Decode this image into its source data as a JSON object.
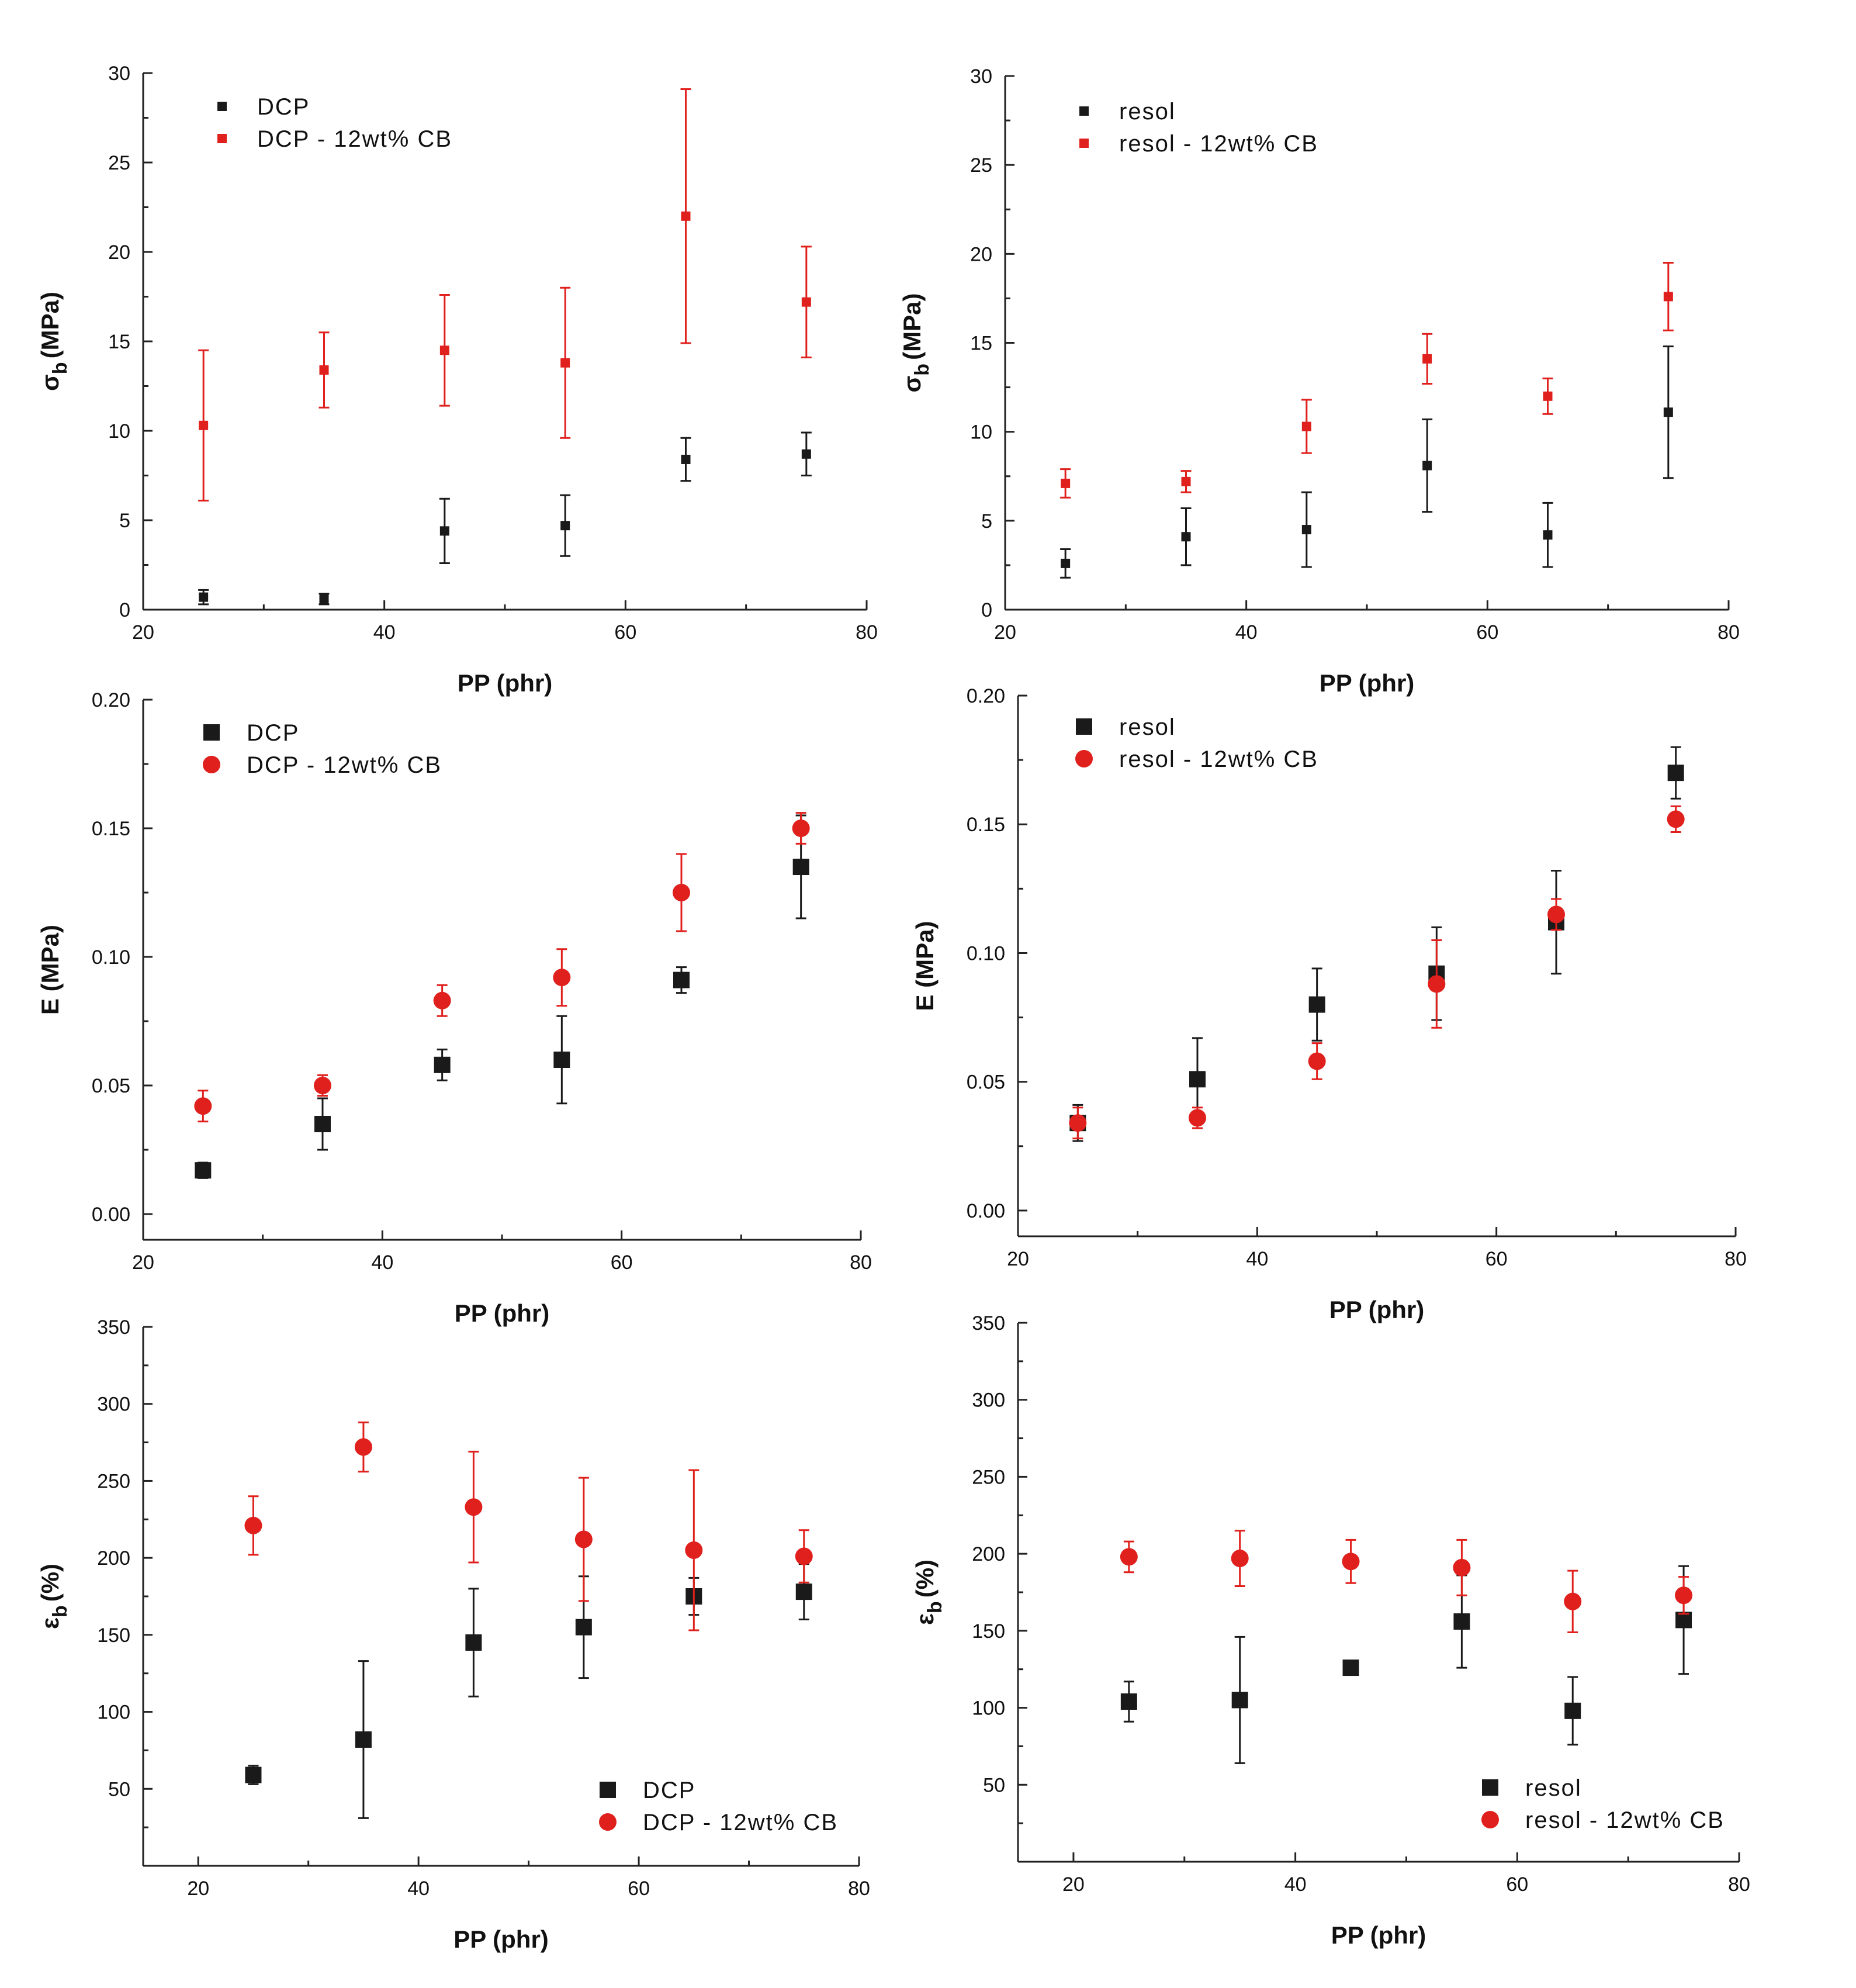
{
  "chart_data": [
    {
      "id": "p1",
      "type": "scatter",
      "panel": "top-left",
      "title": "",
      "xlabel": "PP (phr)",
      "ylabel": "σb (MPa)",
      "ylabel_main": "σ",
      "ylabel_sub": "b",
      "ylabel_unit": "(MPa)",
      "xlim": [
        20,
        80
      ],
      "ylim": [
        0,
        30
      ],
      "xticks": [
        "20",
        "40",
        "60",
        "80"
      ],
      "yticks": [
        "0",
        "5",
        "10",
        "15",
        "20",
        "25",
        "30"
      ],
      "marker_size": "small",
      "legend_position": "top-left",
      "series": [
        {
          "name": "DCP",
          "color": "#1a1a1a",
          "marker": "square",
          "x": [
            25,
            35,
            45,
            55,
            65,
            75
          ],
          "y": [
            0.7,
            0.6,
            4.4,
            4.7,
            8.4,
            8.7
          ],
          "err": [
            0.4,
            0.3,
            1.8,
            1.7,
            1.2,
            1.2
          ]
        },
        {
          "name": "DCP - 12wt% CB",
          "color": "#e0201c",
          "marker": "square",
          "x": [
            25,
            35,
            45,
            55,
            65,
            75
          ],
          "y": [
            10.3,
            13.4,
            14.5,
            13.8,
            22,
            17.2
          ],
          "err": [
            4.2,
            2.1,
            3.1,
            4.2,
            7.1,
            3.1
          ]
        }
      ]
    },
    {
      "id": "p2",
      "type": "scatter",
      "panel": "top-right",
      "title": "",
      "xlabel": "PP (phr)",
      "ylabel": "σb (MPa)",
      "ylabel_main": "σ",
      "ylabel_sub": "b",
      "ylabel_unit": "(MPa)",
      "xlim": [
        20,
        80
      ],
      "ylim": [
        0,
        30
      ],
      "xticks": [
        "20",
        "40",
        "60",
        "80"
      ],
      "yticks": [
        "0",
        "5",
        "10",
        "15",
        "20",
        "25",
        "30"
      ],
      "marker_size": "small",
      "legend_position": "top-left",
      "series": [
        {
          "name": "resol",
          "color": "#1a1a1a",
          "marker": "square",
          "x": [
            25,
            35,
            45,
            55,
            65,
            75
          ],
          "y": [
            2.6,
            4.1,
            4.5,
            8.1,
            4.2,
            11.1
          ],
          "err": [
            0.8,
            1.6,
            2.1,
            2.6,
            1.8,
            3.7
          ]
        },
        {
          "name": "resol - 12wt% CB",
          "color": "#e0201c",
          "marker": "square",
          "x": [
            25,
            35,
            45,
            55,
            65,
            75
          ],
          "y": [
            7.1,
            7.2,
            10.3,
            14.1,
            12.0,
            17.6
          ],
          "err": [
            0.8,
            0.6,
            1.5,
            1.4,
            1.0,
            1.9
          ]
        }
      ]
    },
    {
      "id": "p3",
      "type": "scatter",
      "panel": "middle-left",
      "title": "",
      "xlabel": "PP (phr)",
      "ylabel": "E (MPa)",
      "ylabel_main": "E (MPa)",
      "ylabel_sub": "",
      "ylabel_unit": "",
      "xlim": [
        20,
        80
      ],
      "ylim": [
        -0.01,
        0.2
      ],
      "xticks": [
        "20",
        "40",
        "60",
        "80"
      ],
      "yticks": [
        "0.00",
        "0.05",
        "0.10",
        "0.15",
        "0.20"
      ],
      "marker_size": "large",
      "legend_position": "top-left",
      "series": [
        {
          "name": "DCP",
          "color": "#1a1a1a",
          "marker": "square",
          "x": [
            25,
            35,
            45,
            55,
            65,
            75
          ],
          "y": [
            0.017,
            0.035,
            0.058,
            0.06,
            0.091,
            0.135
          ],
          "err": [
            0.003,
            0.01,
            0.006,
            0.017,
            0.005,
            0.02
          ]
        },
        {
          "name": "DCP - 12wt% CB",
          "color": "#e0201c",
          "marker": "circle",
          "x": [
            25,
            35,
            45,
            55,
            65,
            75
          ],
          "y": [
            0.042,
            0.05,
            0.083,
            0.092,
            0.125,
            0.15
          ],
          "err": [
            0.006,
            0.004,
            0.006,
            0.011,
            0.015,
            0.006
          ]
        }
      ]
    },
    {
      "id": "p4",
      "type": "scatter",
      "panel": "middle-right",
      "title": "",
      "xlabel": "PP (phr)",
      "ylabel": "E (MPa)",
      "ylabel_main": "E (MPa)",
      "ylabel_sub": "",
      "ylabel_unit": "",
      "xlim": [
        20,
        80
      ],
      "ylim": [
        -0.01,
        0.2
      ],
      "xticks": [
        "20",
        "40",
        "60",
        "80"
      ],
      "yticks": [
        "0.00",
        "0.05",
        "0.10",
        "0.15",
        "0.20"
      ],
      "marker_size": "large",
      "legend_position": "top-left",
      "series": [
        {
          "name": "resol",
          "color": "#1a1a1a",
          "marker": "square",
          "x": [
            25,
            35,
            45,
            55,
            65,
            75
          ],
          "y": [
            0.034,
            0.051,
            0.08,
            0.092,
            0.112,
            0.17
          ],
          "err": [
            0.007,
            0.016,
            0.014,
            0.018,
            0.02,
            0.01
          ]
        },
        {
          "name": "resol - 12wt% CB",
          "color": "#e0201c",
          "marker": "circle",
          "x": [
            25,
            35,
            45,
            55,
            65,
            75
          ],
          "y": [
            0.034,
            0.036,
            0.058,
            0.088,
            0.115,
            0.152
          ],
          "err": [
            0.006,
            0.004,
            0.007,
            0.017,
            0.006,
            0.005
          ]
        }
      ]
    },
    {
      "id": "p5",
      "type": "scatter",
      "panel": "bottom-left",
      "title": "",
      "xlabel": "PP (phr)",
      "ylabel": "εb (%)",
      "ylabel_main": "ε",
      "ylabel_sub": "b",
      "ylabel_unit": "(%)",
      "xlim": [
        15,
        80
      ],
      "ylim": [
        0,
        350
      ],
      "xticks": [
        "20",
        "40",
        "60",
        "80"
      ],
      "yticks": [
        "50",
        "100",
        "150",
        "200",
        "250",
        "300",
        "350"
      ],
      "marker_size": "large",
      "legend_position": "bottom-right",
      "series": [
        {
          "name": "DCP",
          "color": "#1a1a1a",
          "marker": "square",
          "x": [
            25,
            35,
            45,
            55,
            65,
            75
          ],
          "y": [
            59,
            82,
            145,
            155,
            175,
            178
          ],
          "err": [
            6,
            51,
            35,
            33,
            12,
            18
          ]
        },
        {
          "name": "DCP - 12wt% CB",
          "color": "#e0201c",
          "marker": "circle",
          "x": [
            25,
            35,
            45,
            55,
            65,
            75
          ],
          "y": [
            221,
            272,
            233,
            212,
            205,
            201
          ],
          "err": [
            19,
            16,
            36,
            40,
            52,
            17
          ]
        }
      ]
    },
    {
      "id": "p6",
      "type": "scatter",
      "panel": "bottom-right",
      "title": "",
      "xlabel": "PP (phr)",
      "ylabel": "εb (%)",
      "ylabel_main": "ε",
      "ylabel_sub": "b",
      "ylabel_unit": "(%)",
      "xlim": [
        15,
        80
      ],
      "ylim": [
        0,
        350
      ],
      "xticks": [
        "20",
        "40",
        "60",
        "80"
      ],
      "yticks": [
        "50",
        "100",
        "150",
        "200",
        "250",
        "300",
        "350"
      ],
      "marker_size": "large",
      "legend_position": "bottom-right",
      "series": [
        {
          "name": "resol",
          "color": "#1a1a1a",
          "marker": "square",
          "x": [
            25,
            35,
            45,
            55,
            65,
            75
          ],
          "y": [
            104,
            105,
            126,
            156,
            98,
            157
          ],
          "err": [
            13,
            41,
            4,
            30,
            22,
            35
          ]
        },
        {
          "name": "resol - 12wt% CB",
          "color": "#e0201c",
          "marker": "circle",
          "x": [
            25,
            35,
            45,
            55,
            65,
            75
          ],
          "y": [
            198,
            197,
            195,
            191,
            169,
            173
          ],
          "err": [
            10,
            18,
            14,
            18,
            20,
            12
          ]
        }
      ]
    }
  ]
}
